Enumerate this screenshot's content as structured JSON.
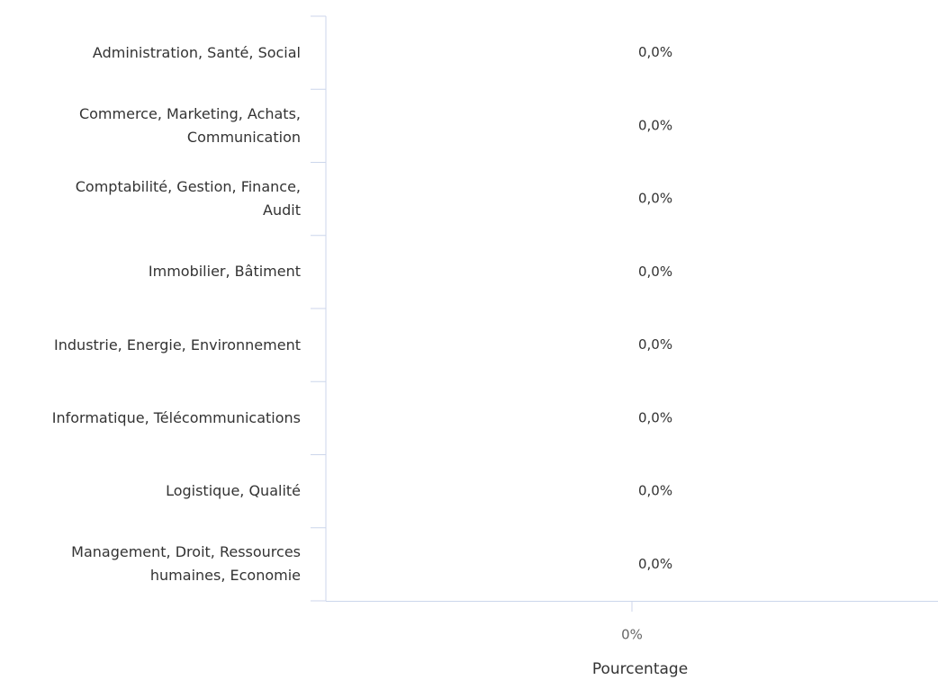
{
  "chart_data": {
    "type": "bar",
    "orientation": "horizontal",
    "categories": [
      "Administration, Santé, Social",
      "Commerce, Marketing, Achats, Communication",
      "Comptabilité, Gestion, Finance, Audit",
      "Immobilier, Bâtiment",
      "Industrie, Energie, Environnement",
      "Informatique, Télécommunications",
      "Logistique, Qualité",
      "Management, Droit, Ressources humaines, Economie"
    ],
    "values": [
      0,
      0,
      0,
      0,
      0,
      0,
      0,
      0
    ],
    "value_labels": [
      "0,0%",
      "0,0%",
      "0,0%",
      "0,0%",
      "0,0%",
      "0,0%",
      "0,0%",
      "0,0%"
    ],
    "color": "#7cb5ec",
    "xlim": [
      -1,
      1
    ],
    "xticks": [
      {
        "value": 0,
        "label": "0%"
      }
    ],
    "xlabel": "Pourcentage",
    "grid": false
  }
}
